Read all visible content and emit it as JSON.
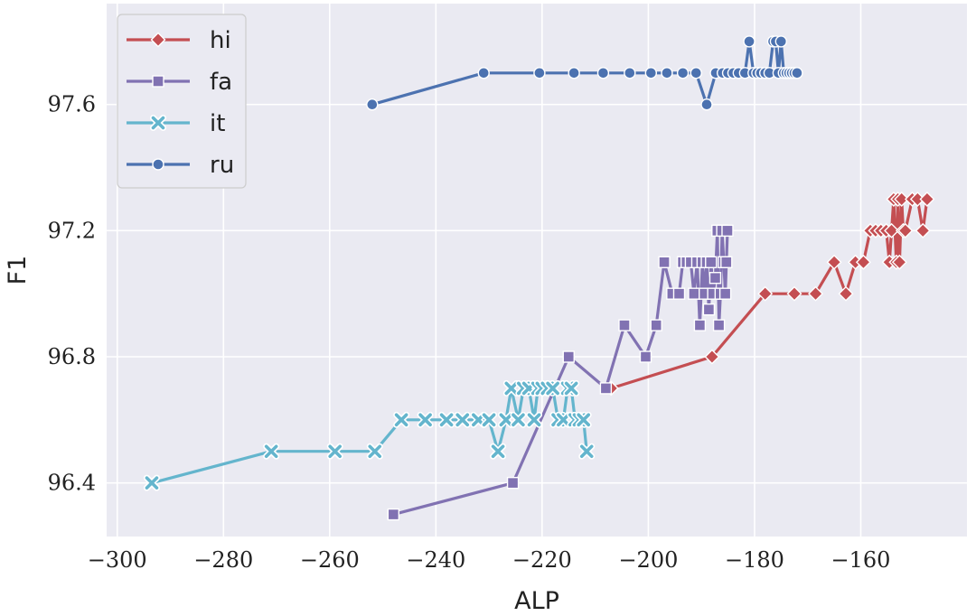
{
  "chart_data": {
    "type": "line",
    "xlabel": "ALP",
    "ylabel": "F1",
    "xlim": [
      -302,
      -140
    ],
    "ylim": [
      96.23,
      97.92
    ],
    "xticks": [
      -300,
      -280,
      -260,
      -240,
      -220,
      -200,
      -180,
      -160
    ],
    "xtick_labels": [
      "−300",
      "−280",
      "−260",
      "−240",
      "−220",
      "−200",
      "−180",
      "−160"
    ],
    "yticks": [
      96.4,
      96.8,
      97.2,
      97.6
    ],
    "ytick_labels": [
      "96.4",
      "96.8",
      "97.2",
      "97.6"
    ],
    "grid": true,
    "legend_position": "top-left",
    "series": [
      {
        "name": "hi",
        "color": "#c44e52",
        "marker": "diamond",
        "points": [
          [
            -207.0,
            96.7
          ],
          [
            -188.0,
            96.8
          ],
          [
            -178.0,
            97.0
          ],
          [
            -172.5,
            97.0
          ],
          [
            -168.5,
            97.0
          ],
          [
            -165.0,
            97.1
          ],
          [
            -162.8,
            97.0
          ],
          [
            -161.0,
            97.1
          ],
          [
            -159.5,
            97.1
          ],
          [
            -158.2,
            97.2
          ],
          [
            -157.2,
            97.2
          ],
          [
            -156.2,
            97.2
          ],
          [
            -155.2,
            97.2
          ],
          [
            -154.6,
            97.1
          ],
          [
            -154.2,
            97.2
          ],
          [
            -153.8,
            97.3
          ],
          [
            -153.3,
            97.1
          ],
          [
            -153.0,
            97.3
          ],
          [
            -152.7,
            97.1
          ],
          [
            -152.3,
            97.3
          ],
          [
            -152.0,
            97.2
          ],
          [
            -151.6,
            97.2
          ],
          [
            -150.3,
            97.3
          ],
          [
            -149.3,
            97.3
          ],
          [
            -148.3,
            97.2
          ],
          [
            -147.5,
            97.3
          ]
        ]
      },
      {
        "name": "fa",
        "color": "#8172b2",
        "marker": "square",
        "points": [
          [
            -248.0,
            96.3
          ],
          [
            -225.5,
            96.4
          ],
          [
            -215.0,
            96.8
          ],
          [
            -208.0,
            96.7
          ],
          [
            -204.5,
            96.9
          ],
          [
            -200.5,
            96.8
          ],
          [
            -198.5,
            96.9
          ],
          [
            -197.0,
            97.1
          ],
          [
            -195.5,
            97.0
          ],
          [
            -194.2,
            97.0
          ],
          [
            -193.5,
            97.1
          ],
          [
            -192.8,
            97.1
          ],
          [
            -192.0,
            97.1
          ],
          [
            -191.4,
            97.0
          ],
          [
            -190.8,
            97.1
          ],
          [
            -190.3,
            96.9
          ],
          [
            -189.8,
            97.1
          ],
          [
            -189.4,
            97.0
          ],
          [
            -189.0,
            97.1
          ],
          [
            -188.6,
            96.95
          ],
          [
            -188.2,
            97.1
          ],
          [
            -187.8,
            97.0
          ],
          [
            -187.4,
            97.05
          ],
          [
            -187.0,
            97.2
          ],
          [
            -186.7,
            96.9
          ],
          [
            -186.4,
            97.0
          ],
          [
            -186.1,
            97.2
          ],
          [
            -185.8,
            97.1
          ],
          [
            -185.5,
            97.0
          ],
          [
            -185.3,
            97.1
          ],
          [
            -185.1,
            97.2
          ]
        ]
      },
      {
        "name": "it",
        "color": "#64b5cd",
        "marker": "x",
        "points": [
          [
            -293.5,
            96.4
          ],
          [
            -271.0,
            96.5
          ],
          [
            -259.0,
            96.5
          ],
          [
            -251.5,
            96.5
          ],
          [
            -246.5,
            96.6
          ],
          [
            -242.0,
            96.6
          ],
          [
            -238.0,
            96.6
          ],
          [
            -235.0,
            96.6
          ],
          [
            -232.0,
            96.6
          ],
          [
            -230.0,
            96.6
          ],
          [
            -228.3,
            96.5
          ],
          [
            -226.8,
            96.6
          ],
          [
            -225.8,
            96.7
          ],
          [
            -224.5,
            96.6
          ],
          [
            -223.5,
            96.7
          ],
          [
            -222.5,
            96.7
          ],
          [
            -221.5,
            96.6
          ],
          [
            -220.8,
            96.7
          ],
          [
            -220.0,
            96.7
          ],
          [
            -219.0,
            96.7
          ],
          [
            -218.0,
            96.7
          ],
          [
            -217.0,
            96.6
          ],
          [
            -216.0,
            96.6
          ],
          [
            -215.2,
            96.7
          ],
          [
            -214.5,
            96.7
          ],
          [
            -213.8,
            96.6
          ],
          [
            -213.0,
            96.6
          ],
          [
            -212.2,
            96.6
          ],
          [
            -211.6,
            96.5
          ]
        ]
      },
      {
        "name": "ru",
        "color": "#4c72b0",
        "marker": "circle",
        "points": [
          [
            -252.0,
            97.6
          ],
          [
            -231.0,
            97.7
          ],
          [
            -220.5,
            97.7
          ],
          [
            -214.0,
            97.7
          ],
          [
            -208.5,
            97.7
          ],
          [
            -203.5,
            97.7
          ],
          [
            -199.5,
            97.7
          ],
          [
            -196.5,
            97.7
          ],
          [
            -193.5,
            97.7
          ],
          [
            -191.0,
            97.7
          ],
          [
            -189.0,
            97.6
          ],
          [
            -187.3,
            97.7
          ],
          [
            -186.0,
            97.7
          ],
          [
            -185.0,
            97.7
          ],
          [
            -184.0,
            97.7
          ],
          [
            -183.0,
            97.7
          ],
          [
            -181.8,
            97.7
          ],
          [
            -181.0,
            97.8
          ],
          [
            -180.2,
            97.7
          ],
          [
            -179.5,
            97.7
          ],
          [
            -178.8,
            97.7
          ],
          [
            -178.0,
            97.7
          ],
          [
            -177.2,
            97.7
          ],
          [
            -176.5,
            97.8
          ],
          [
            -176.0,
            97.8
          ],
          [
            -175.5,
            97.7
          ],
          [
            -175.0,
            97.8
          ],
          [
            -174.5,
            97.7
          ],
          [
            -174.0,
            97.7
          ],
          [
            -173.5,
            97.7
          ],
          [
            -173.0,
            97.7
          ],
          [
            -172.5,
            97.7
          ],
          [
            -172.0,
            97.7
          ]
        ]
      }
    ]
  }
}
